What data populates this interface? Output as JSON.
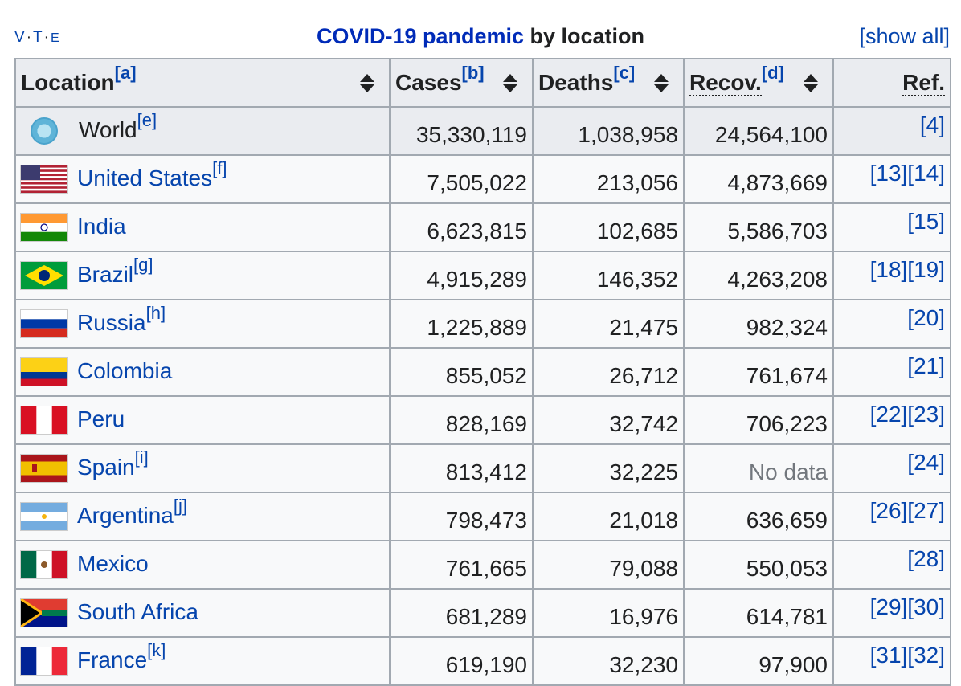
{
  "navbox": {
    "v": "V",
    "t": "T",
    "e": "E"
  },
  "caption": {
    "link": "COVID-19 pandemic",
    "rest": " by location"
  },
  "show_all": "[show all]",
  "headers": {
    "location": "Location",
    "location_note": "[a]",
    "cases": "Cases",
    "cases_note": "[b]",
    "deaths": "Deaths",
    "deaths_note": "[c]",
    "recov": "Recov.",
    "recov_note": "[d]",
    "ref": "Ref."
  },
  "rows": [
    {
      "name": "World",
      "note": "[e]",
      "flag": "globe-icon",
      "cases": "35,330,119",
      "deaths": "1,038,958",
      "recov": "24,564,100",
      "ref": "[4]"
    },
    {
      "name": "United States",
      "note": "[f]",
      "flag": "us-flag-icon",
      "cases": "7,505,022",
      "deaths": "213,056",
      "recov": "4,873,669",
      "ref": "[13][14]"
    },
    {
      "name": "India",
      "note": "",
      "flag": "india-flag-icon",
      "cases": "6,623,815",
      "deaths": "102,685",
      "recov": "5,586,703",
      "ref": "[15]"
    },
    {
      "name": "Brazil",
      "note": "[g]",
      "flag": "brazil-flag-icon",
      "cases": "4,915,289",
      "deaths": "146,352",
      "recov": "4,263,208",
      "ref": "[18][19]"
    },
    {
      "name": "Russia",
      "note": "[h]",
      "flag": "russia-flag-icon",
      "cases": "1,225,889",
      "deaths": "21,475",
      "recov": "982,324",
      "ref": "[20]"
    },
    {
      "name": "Colombia",
      "note": "",
      "flag": "colombia-flag-icon",
      "cases": "855,052",
      "deaths": "26,712",
      "recov": "761,674",
      "ref": "[21]"
    },
    {
      "name": "Peru",
      "note": "",
      "flag": "peru-flag-icon",
      "cases": "828,169",
      "deaths": "32,742",
      "recov": "706,223",
      "ref": "[22][23]"
    },
    {
      "name": "Spain",
      "note": "[i]",
      "flag": "spain-flag-icon",
      "cases": "813,412",
      "deaths": "32,225",
      "recov": "No data",
      "ref": "[24]"
    },
    {
      "name": "Argentina",
      "note": "[j]",
      "flag": "argentina-flag-icon",
      "cases": "798,473",
      "deaths": "21,018",
      "recov": "636,659",
      "ref": "[26][27]"
    },
    {
      "name": "Mexico",
      "note": "",
      "flag": "mexico-flag-icon",
      "cases": "761,665",
      "deaths": "79,088",
      "recov": "550,053",
      "ref": "[28]"
    },
    {
      "name": "South Africa",
      "note": "",
      "flag": "south-africa-flag-icon",
      "cases": "681,289",
      "deaths": "16,976",
      "recov": "614,781",
      "ref": "[29][30]"
    },
    {
      "name": "France",
      "note": "[k]",
      "flag": "france-flag-icon",
      "cases": "619,190",
      "deaths": "32,230",
      "recov": "97,900",
      "ref": "[31][32]"
    }
  ],
  "colors": {
    "link": "#0645ad",
    "header_bg": "#eaecf0",
    "cell_bg": "#f8f9fa",
    "border": "#a2a9b1",
    "caption_link": "#002bb8"
  }
}
